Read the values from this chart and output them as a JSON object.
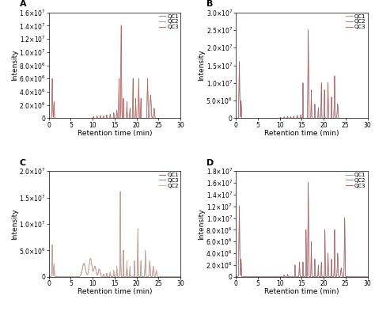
{
  "panels": [
    "A",
    "B",
    "C",
    "D"
  ],
  "xlim": [
    0,
    30
  ],
  "xlabel": "Retention time (min)",
  "ylabel": "Intensity",
  "panel_A": {
    "ylim": [
      0,
      16000000.0
    ],
    "yticks": [
      0,
      2000000.0,
      4000000.0,
      6000000.0,
      8000000.0,
      10000000.0,
      12000000.0,
      14000000.0,
      16000000.0
    ],
    "legend_order": [
      "QC1",
      "QC2",
      "QC3"
    ],
    "colors": [
      "#888888",
      "#aa7799",
      "#cc6655"
    ]
  },
  "panel_B": {
    "ylim": [
      0,
      30000000.0
    ],
    "yticks": [
      0,
      5000000.0,
      10000000.0,
      15000000.0,
      20000000.0,
      25000000.0,
      30000000.0
    ],
    "legend_order": [
      "QC1",
      "QC2",
      "QC3"
    ],
    "colors": [
      "#88aa88",
      "#9977aa",
      "#cc5544"
    ]
  },
  "panel_C": {
    "ylim": [
      0,
      20000000.0
    ],
    "yticks": [
      0,
      5000000.0,
      10000000.0,
      15000000.0,
      20000000.0
    ],
    "legend_order": [
      "QC1",
      "QC3",
      "QC2"
    ],
    "colors": [
      "#cc5544",
      "#9977aa",
      "#ccbb99"
    ]
  },
  "panel_D": {
    "ylim": [
      0,
      18000000.0
    ],
    "yticks": [
      0,
      2000000.0,
      4000000.0,
      6000000.0,
      8000000.0,
      10000000.0,
      12000000.0,
      14000000.0,
      16000000.0,
      18000000.0
    ],
    "legend_order": [
      "QC1",
      "QC2",
      "QC3"
    ],
    "colors": [
      "#88aa88",
      "#9977aa",
      "#cc5544"
    ]
  },
  "line_width": 0.4,
  "font_size": 7,
  "label_fontsize": 6.5,
  "tick_fontsize": 5.5,
  "xticks": [
    0,
    5,
    10,
    15,
    20,
    25,
    30
  ]
}
